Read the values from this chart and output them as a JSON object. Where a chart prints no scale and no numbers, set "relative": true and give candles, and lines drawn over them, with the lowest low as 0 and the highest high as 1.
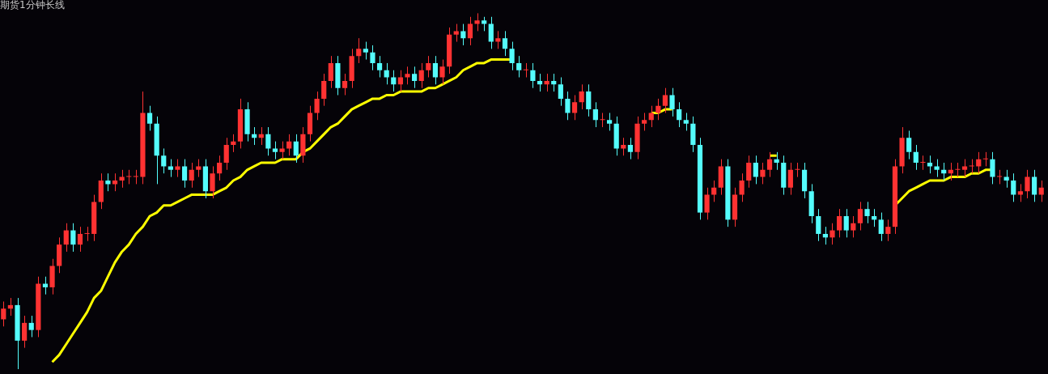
{
  "chart_data": {
    "type": "candlestick",
    "title": "期货1分钟长线",
    "relative": true,
    "legend": false,
    "categories": [
      null,
      null,
      null,
      null,
      null,
      null,
      null,
      null,
      null,
      null,
      null,
      null,
      null,
      null,
      null,
      null,
      null,
      null,
      null,
      null,
      null,
      null,
      null,
      null,
      null,
      null,
      null,
      null,
      null,
      null,
      null,
      null,
      null,
      null,
      null,
      null,
      null,
      null,
      null,
      null,
      null,
      null,
      null,
      null,
      null,
      null,
      null,
      null,
      null,
      null,
      null,
      null,
      null,
      null,
      null,
      null,
      null,
      null,
      null,
      null,
      null,
      null,
      null,
      null,
      null,
      null,
      null,
      null,
      null,
      null,
      null,
      null,
      null,
      null,
      null,
      null,
      null,
      null,
      null,
      null,
      null,
      null,
      null,
      null,
      null,
      null,
      null,
      null,
      null,
      null,
      null,
      null,
      null,
      null,
      null,
      null,
      null,
      null,
      null,
      null,
      null,
      null,
      null,
      null,
      null,
      null,
      null,
      null,
      null,
      null,
      null,
      null,
      null,
      null,
      null,
      null,
      null,
      null,
      null,
      null,
      null,
      null,
      null,
      null,
      null,
      null,
      null,
      null,
      null,
      null,
      null,
      null,
      null,
      null,
      null,
      null,
      null,
      null,
      null,
      null,
      null,
      null,
      null,
      null,
      null,
      null,
      null,
      null,
      null,
      null
    ],
    "ohlc": [
      [
        0.14,
        0.19,
        0.12,
        0.17
      ],
      [
        0.17,
        0.2,
        0.15,
        0.18
      ],
      [
        0.18,
        0.2,
        0,
        0.08
      ],
      [
        0.08,
        0.15,
        0.06,
        0.13
      ],
      [
        0.13,
        0.15,
        0.09,
        0.11
      ],
      [
        0.11,
        0.26,
        0.09,
        0.24
      ],
      [
        0.24,
        0.26,
        0.21,
        0.23
      ],
      [
        0.23,
        0.31,
        0.21,
        0.29
      ],
      [
        0.29,
        0.37,
        0.27,
        0.35
      ],
      [
        0.35,
        0.41,
        0.33,
        0.39
      ],
      [
        0.39,
        0.41,
        0.33,
        0.35
      ],
      [
        0.35,
        0.4,
        0.33,
        0.38
      ],
      [
        0.38,
        0.4,
        0.36,
        0.38
      ],
      [
        0.38,
        0.49,
        0.36,
        0.47
      ],
      [
        0.47,
        0.55,
        0.45,
        0.53
      ],
      [
        0.53,
        0.55,
        0.5,
        0.52
      ],
      [
        0.52,
        0.55,
        0.5,
        0.53
      ],
      [
        0.53,
        0.56,
        0.51,
        0.54
      ],
      [
        0.54,
        0.56,
        0.52,
        0.54
      ],
      [
        0.54,
        0.56,
        0.52,
        0.54
      ],
      [
        0.54,
        0.78,
        0.52,
        0.72
      ],
      [
        0.72,
        0.74,
        0.67,
        0.69
      ],
      [
        0.69,
        0.71,
        0.52,
        0.6
      ],
      [
        0.6,
        0.62,
        0.55,
        0.57
      ],
      [
        0.57,
        0.59,
        0.54,
        0.56
      ],
      [
        0.56,
        0.59,
        0.54,
        0.57
      ],
      [
        0.57,
        0.59,
        0.51,
        0.53
      ],
      [
        0.53,
        0.58,
        0.51,
        0.56
      ],
      [
        0.56,
        0.59,
        0.54,
        0.57
      ],
      [
        0.57,
        0.59,
        0.48,
        0.5
      ],
      [
        0.5,
        0.57,
        0.48,
        0.55
      ],
      [
        0.55,
        0.6,
        0.53,
        0.58
      ],
      [
        0.58,
        0.65,
        0.56,
        0.63
      ],
      [
        0.63,
        0.66,
        0.61,
        0.64
      ],
      [
        0.64,
        0.76,
        0.62,
        0.73
      ],
      [
        0.73,
        0.75,
        0.64,
        0.66
      ],
      [
        0.66,
        0.68,
        0.63,
        0.65
      ],
      [
        0.65,
        0.68,
        0.63,
        0.66
      ],
      [
        0.66,
        0.68,
        0.6,
        0.62
      ],
      [
        0.62,
        0.64,
        0.59,
        0.61
      ],
      [
        0.61,
        0.64,
        0.59,
        0.62
      ],
      [
        0.62,
        0.66,
        0.6,
        0.64
      ],
      [
        0.64,
        0.66,
        0.58,
        0.6
      ],
      [
        0.6,
        0.68,
        0.58,
        0.66
      ],
      [
        0.66,
        0.74,
        0.64,
        0.72
      ],
      [
        0.72,
        0.78,
        0.7,
        0.76
      ],
      [
        0.76,
        0.83,
        0.74,
        0.81
      ],
      [
        0.81,
        0.88,
        0.79,
        0.86
      ],
      [
        0.86,
        0.88,
        0.77,
        0.79
      ],
      [
        0.79,
        0.83,
        0.77,
        0.81
      ],
      [
        0.81,
        0.9,
        0.79,
        0.88
      ],
      [
        0.88,
        0.93,
        0.86,
        0.9
      ],
      [
        0.9,
        0.92,
        0.87,
        0.89
      ],
      [
        0.89,
        0.91,
        0.84,
        0.86
      ],
      [
        0.86,
        0.88,
        0.82,
        0.84
      ],
      [
        0.84,
        0.86,
        0.8,
        0.82
      ],
      [
        0.82,
        0.84,
        0.78,
        0.8
      ],
      [
        0.8,
        0.84,
        0.78,
        0.82
      ],
      [
        0.82,
        0.85,
        0.8,
        0.83
      ],
      [
        0.83,
        0.85,
        0.79,
        0.81
      ],
      [
        0.81,
        0.86,
        0.79,
        0.84
      ],
      [
        0.84,
        0.88,
        0.82,
        0.86
      ],
      [
        0.86,
        0.88,
        0.8,
        0.82
      ],
      [
        0.82,
        0.87,
        0.8,
        0.85
      ],
      [
        0.85,
        0.96,
        0.83,
        0.94
      ],
      [
        0.94,
        0.97,
        0.92,
        0.95
      ],
      [
        0.95,
        0.97,
        0.91,
        0.93
      ],
      [
        0.93,
        0.99,
        0.91,
        0.97
      ],
      [
        0.97,
        1,
        0.95,
        0.98
      ],
      [
        0.98,
        0.99,
        0.95,
        0.97
      ],
      [
        0.97,
        0.99,
        0.9,
        0.92
      ],
      [
        0.92,
        0.95,
        0.9,
        0.93
      ],
      [
        0.93,
        0.95,
        0.88,
        0.9
      ],
      [
        0.9,
        0.92,
        0.84,
        0.86
      ],
      [
        0.86,
        0.88,
        0.82,
        0.84
      ],
      [
        0.84,
        0.86,
        0.82,
        0.84
      ],
      [
        0.84,
        0.86,
        0.79,
        0.81
      ],
      [
        0.81,
        0.83,
        0.78,
        0.8
      ],
      [
        0.8,
        0.83,
        0.78,
        0.81
      ],
      [
        0.81,
        0.83,
        0.78,
        0.8
      ],
      [
        0.8,
        0.82,
        0.74,
        0.76
      ],
      [
        0.76,
        0.78,
        0.7,
        0.72
      ],
      [
        0.72,
        0.77,
        0.7,
        0.75
      ],
      [
        0.75,
        0.8,
        0.73,
        0.78
      ],
      [
        0.78,
        0.8,
        0.71,
        0.73
      ],
      [
        0.73,
        0.75,
        0.68,
        0.7
      ],
      [
        0.7,
        0.72,
        0.68,
        0.7
      ],
      [
        0.7,
        0.72,
        0.67,
        0.69
      ],
      [
        0.69,
        0.71,
        0.6,
        0.62
      ],
      [
        0.62,
        0.65,
        0.6,
        0.63
      ],
      [
        0.63,
        0.65,
        0.59,
        0.61
      ],
      [
        0.61,
        0.71,
        0.59,
        0.69
      ],
      [
        0.69,
        0.72,
        0.67,
        0.7
      ],
      [
        0.7,
        0.74,
        0.68,
        0.72
      ],
      [
        0.72,
        0.76,
        0.7,
        0.74
      ],
      [
        0.74,
        0.79,
        0.72,
        0.77
      ],
      [
        0.77,
        0.79,
        0.71,
        0.73
      ],
      [
        0.73,
        0.75,
        0.68,
        0.7
      ],
      [
        0.7,
        0.72,
        0.67,
        0.69
      ],
      [
        0.69,
        0.71,
        0.61,
        0.63
      ],
      [
        0.63,
        0.65,
        0.42,
        0.44
      ],
      [
        0.44,
        0.51,
        0.42,
        0.49
      ],
      [
        0.49,
        0.53,
        0.47,
        0.51
      ],
      [
        0.51,
        0.59,
        0.49,
        0.57
      ],
      [
        0.57,
        0.59,
        0.4,
        0.42
      ],
      [
        0.42,
        0.51,
        0.4,
        0.49
      ],
      [
        0.49,
        0.55,
        0.47,
        0.53
      ],
      [
        0.53,
        0.6,
        0.51,
        0.58
      ],
      [
        0.58,
        0.6,
        0.52,
        0.54
      ],
      [
        0.54,
        0.58,
        0.52,
        0.56
      ],
      [
        0.56,
        0.61,
        0.54,
        0.59
      ],
      [
        0.59,
        0.61,
        0.56,
        0.58
      ],
      [
        0.58,
        0.6,
        0.49,
        0.51
      ],
      [
        0.51,
        0.58,
        0.49,
        0.56
      ],
      [
        0.56,
        0.58,
        0.54,
        0.56
      ],
      [
        0.56,
        0.58,
        0.48,
        0.5
      ],
      [
        0.5,
        0.52,
        0.41,
        0.43
      ],
      [
        0.43,
        0.45,
        0.36,
        0.38
      ],
      [
        0.38,
        0.4,
        0.35,
        0.37
      ],
      [
        0.37,
        0.41,
        0.35,
        0.39
      ],
      [
        0.39,
        0.45,
        0.37,
        0.43
      ],
      [
        0.43,
        0.45,
        0.37,
        0.39
      ],
      [
        0.39,
        0.43,
        0.37,
        0.41
      ],
      [
        0.41,
        0.47,
        0.39,
        0.45
      ],
      [
        0.45,
        0.47,
        0.41,
        0.43
      ],
      [
        0.43,
        0.45,
        0.4,
        0.42
      ],
      [
        0.42,
        0.44,
        0.36,
        0.38
      ],
      [
        0.38,
        0.42,
        0.36,
        0.4
      ],
      [
        0.4,
        0.59,
        0.38,
        0.57
      ],
      [
        0.57,
        0.68,
        0.55,
        0.65
      ],
      [
        0.65,
        0.67,
        0.59,
        0.61
      ],
      [
        0.61,
        0.63,
        0.56,
        0.58
      ],
      [
        0.58,
        0.6,
        0.56,
        0.58
      ],
      [
        0.58,
        0.6,
        0.55,
        0.57
      ],
      [
        0.57,
        0.59,
        0.54,
        0.56
      ],
      [
        0.56,
        0.58,
        0.53,
        0.55
      ],
      [
        0.55,
        0.58,
        0.53,
        0.56
      ],
      [
        0.56,
        0.58,
        0.54,
        0.56
      ],
      [
        0.56,
        0.59,
        0.54,
        0.57
      ],
      [
        0.57,
        0.59,
        0.55,
        0.57
      ],
      [
        0.57,
        0.61,
        0.55,
        0.59
      ],
      [
        0.59,
        0.61,
        0.57,
        0.59
      ],
      [
        0.59,
        0.61,
        0.52,
        0.54
      ],
      [
        0.54,
        0.56,
        0.52,
        0.54
      ],
      [
        0.54,
        0.56,
        0.51,
        0.53
      ],
      [
        0.53,
        0.55,
        0.47,
        0.49
      ],
      [
        0.49,
        0.52,
        0.47,
        0.5
      ],
      [
        0.5,
        0.56,
        0.48,
        0.54
      ],
      [
        0.54,
        0.56,
        0.47,
        0.49
      ],
      [
        0.49,
        0.53,
        0.47,
        0.51
      ]
    ],
    "series": [
      {
        "type": "line",
        "color": "#ffff00",
        "values": [
          null,
          null,
          null,
          null,
          null,
          null,
          null,
          0.02,
          0.04,
          0.07,
          0.1,
          0.13,
          0.16,
          0.2,
          0.22,
          0.26,
          0.3,
          0.33,
          0.35,
          0.38,
          0.4,
          0.43,
          0.44,
          0.46,
          0.46,
          0.47,
          0.48,
          0.49,
          0.49,
          0.49,
          0.49,
          0.5,
          0.51,
          0.53,
          0.54,
          0.56,
          0.57,
          0.58,
          0.58,
          0.58,
          0.59,
          0.59,
          0.59,
          0.61,
          0.62,
          0.64,
          0.66,
          0.68,
          0.69,
          0.71,
          0.73,
          0.74,
          0.75,
          0.76,
          0.76,
          0.77,
          0.77,
          0.78,
          0.78,
          0.78,
          0.78,
          0.79,
          0.79,
          0.8,
          0.81,
          0.82,
          0.84,
          0.85,
          0.86,
          0.86,
          0.87,
          0.87,
          0.87,
          0.87,
          null,
          null,
          null,
          null,
          null,
          null,
          null,
          null,
          null,
          null,
          null,
          null,
          null,
          null,
          null,
          null,
          null,
          null,
          null,
          0.72,
          0.72,
          0.73,
          0.73,
          null,
          null,
          null,
          null,
          null,
          null,
          null,
          null,
          null,
          null,
          null,
          null,
          null,
          0.6,
          0.6,
          null,
          null,
          null,
          null,
          null,
          null,
          null,
          null,
          null,
          null,
          null,
          null,
          null,
          null,
          null,
          null,
          0.46,
          0.48,
          0.5,
          0.51,
          0.52,
          0.53,
          0.53,
          0.53,
          0.54,
          0.54,
          0.54,
          0.55,
          0.55,
          0.56,
          0.56,
          null,
          null,
          null,
          null,
          null,
          null,
          null
        ]
      }
    ]
  }
}
